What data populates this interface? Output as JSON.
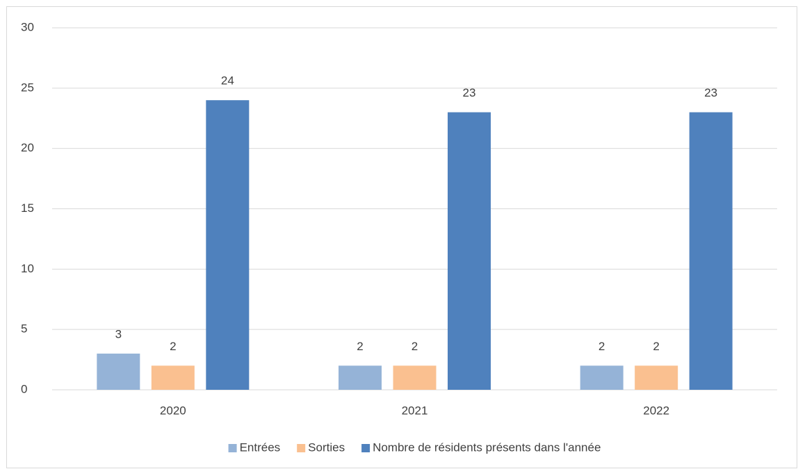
{
  "chart_data": {
    "type": "bar",
    "categories": [
      "2020",
      "2021",
      "2022"
    ],
    "series": [
      {
        "name": "Entrées",
        "color": "#95b3d7",
        "values": [
          3,
          2,
          2
        ]
      },
      {
        "name": "Sorties",
        "color": "#fac090",
        "values": [
          2,
          2,
          2
        ]
      },
      {
        "name": "Nombre de résidents présents dans l'année",
        "color": "#4f81bd",
        "values": [
          24,
          23,
          23
        ]
      }
    ],
    "ylim": [
      0,
      30
    ],
    "yticks": [
      0,
      5,
      10,
      15,
      20,
      25,
      30
    ],
    "grid": true,
    "legend": "bottom"
  }
}
